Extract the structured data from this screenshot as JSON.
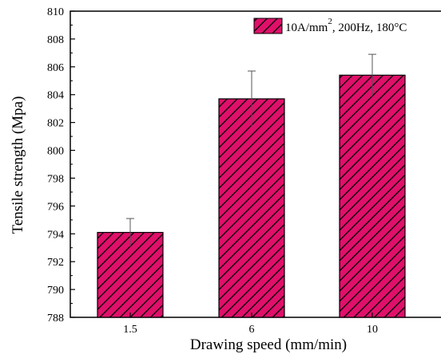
{
  "chart_data": {
    "type": "bar",
    "categories": [
      "1.5",
      "6",
      "10"
    ],
    "values": [
      794.1,
      803.7,
      805.4
    ],
    "error_plus": [
      1.0,
      2.0,
      1.5
    ],
    "error_minus": [
      1.0,
      2.0,
      1.5
    ],
    "xlabel": "Drawing speed (mm/min)",
    "ylabel": "Tensile strength (Mpa)",
    "ylim": [
      788,
      810
    ],
    "yticks": [
      788,
      790,
      792,
      794,
      796,
      798,
      800,
      802,
      804,
      806,
      808,
      810
    ],
    "legend": {
      "label_prefix": "10A/mm",
      "label_sup": "2",
      "label_suffix": ", 200Hz, 180°C",
      "position": "top-right"
    },
    "bar_color": "#e0106a",
    "hatch_color": "#1a0010",
    "grid": false
  }
}
